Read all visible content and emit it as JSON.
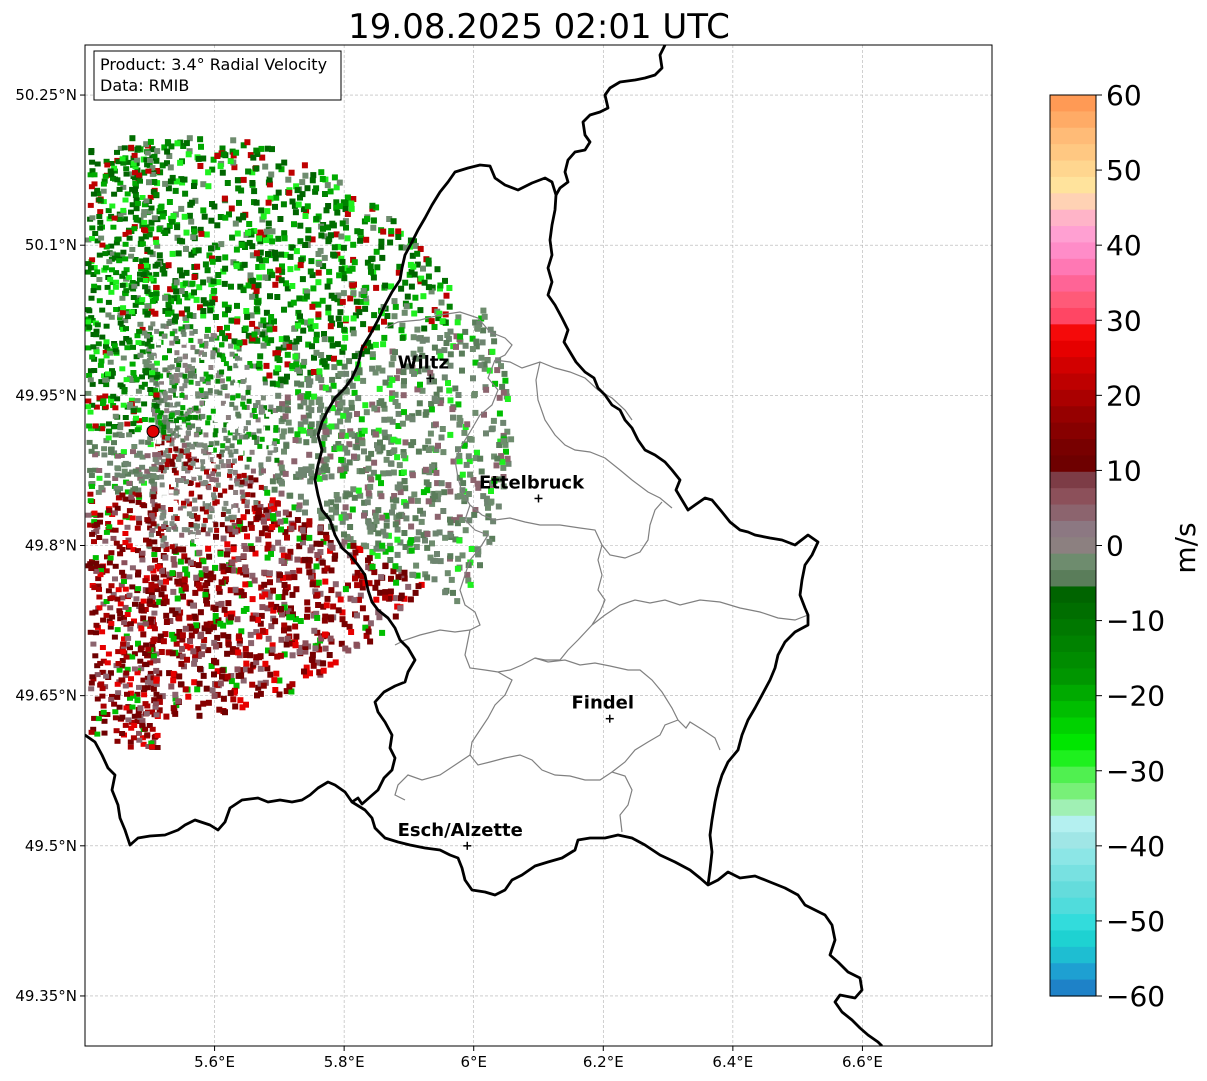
{
  "title": "19.08.2025 02:01 UTC",
  "info": {
    "product": "Product: 3.4° Radial Velocity",
    "data_source": "Data: RMIB"
  },
  "colorbar": {
    "label": "m/s",
    "ticks": [
      "60",
      "50",
      "40",
      "30",
      "20",
      "10",
      "0",
      "−10",
      "−20",
      "−30",
      "−40",
      "−50",
      "−60"
    ],
    "range": [
      -60,
      60
    ],
    "colors": [
      "#ff9a55",
      "#ffab66",
      "#ffbb77",
      "#ffc882",
      "#ffd68f",
      "#ffe39c",
      "#ffd2b4",
      "#ffb4c8",
      "#ffa0d2",
      "#ff8cc8",
      "#ff78b4",
      "#ff6496",
      "#ff5a78",
      "#ff4664",
      "#f50a0a",
      "#e60000",
      "#d20000",
      "#be0000",
      "#aa0000",
      "#960000",
      "#870000",
      "#780000",
      "#6e0000",
      "#7d3c46",
      "#8c505a",
      "#8c646e",
      "#8c7882",
      "#8c8080",
      "#6e8c6e",
      "#5a7d5a",
      "#006400",
      "#006e00",
      "#007800",
      "#008200",
      "#008c00",
      "#009600",
      "#00aa00",
      "#00be00",
      "#00d200",
      "#00e600",
      "#1ef01e",
      "#50f050",
      "#78f078",
      "#a0f0b4",
      "#b4f0f0",
      "#a0e6e6",
      "#8ce6e6",
      "#78e1e1",
      "#64dcdc",
      "#50dcdc",
      "#32dcdc",
      "#1ed2d2",
      "#1ebed2",
      "#1ea0d2",
      "#1e82c8"
    ]
  },
  "axes": {
    "lat_ticks": [
      "50.25°N",
      "50.1°N",
      "49.95°N",
      "49.8°N",
      "49.65°N",
      "49.5°N",
      "49.35°N"
    ],
    "lon_ticks": [
      "5.6°E",
      "5.8°E",
      "6°E",
      "6.2°E",
      "6.4°E",
      "6.6°E"
    ],
    "lon_range": [
      5.4,
      6.8
    ],
    "lat_range": [
      49.3,
      50.3
    ],
    "grid": true
  },
  "radar": {
    "name": "radar-site",
    "lon": 5.505,
    "lat": 49.914,
    "color": "#e00000"
  },
  "cities": [
    {
      "name": "Wiltz",
      "lon": 5.933,
      "lat": 49.967
    },
    {
      "name": "Ettelbruck",
      "lon": 6.1,
      "lat": 49.847
    },
    {
      "name": "Findel",
      "lon": 6.21,
      "lat": 49.627
    },
    {
      "name": "Esch/Alzette",
      "lon": 5.99,
      "lat": 49.5
    }
  ]
}
